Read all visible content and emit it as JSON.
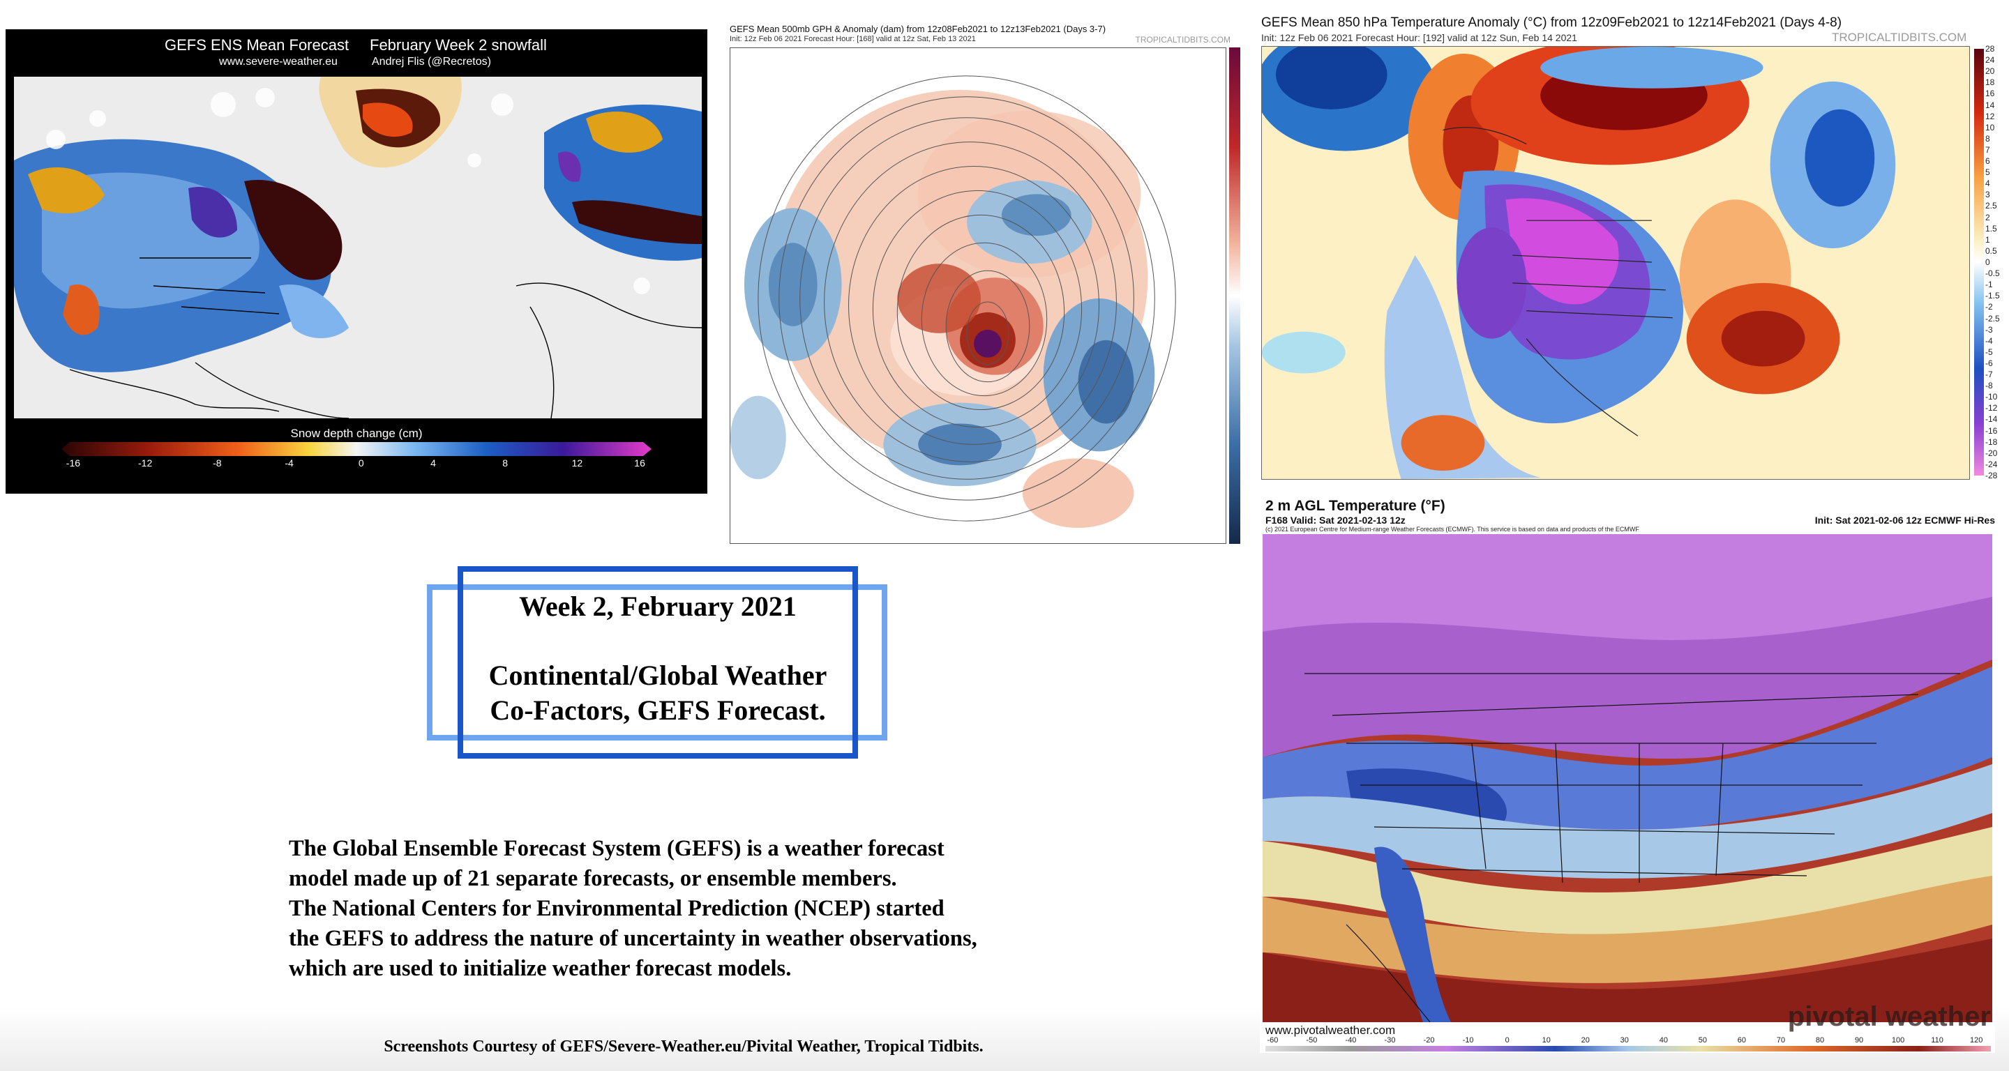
{
  "snow_panel": {
    "title_left": "GEFS ENS Mean Forecast",
    "title_right": "February Week 2 snowfall",
    "site": "www.severe-weather.eu",
    "author": "Andrej Flis (@Recretos)",
    "colorbar_title": "Snow depth change (cm)",
    "ticks": [
      "-16",
      "-12",
      "-8",
      "-4",
      "0",
      "4",
      "8",
      "12",
      "16"
    ]
  },
  "gph_panel": {
    "title": "GEFS Mean 500mb GPH & Anomaly (dam) from 12z08Feb2021 to 12z13Feb2021 (Days 3-7)",
    "init": "Init: 12z Feb 06 2021   Forecast Hour: [168]   valid at 12z Sat, Feb 13 2021",
    "brand": "TROPICALTIDBITS.COM"
  },
  "t850_panel": {
    "title": "GEFS Mean 850 hPa Temperature Anomaly (°C) from 12z09Feb2021 to 12z14Feb2021 (Days 4-8)",
    "init": "Init: 12z Feb 06 2021   Forecast Hour: [192]   valid at 12z Sun, Feb 14 2021",
    "brand": "TROPICALTIDBITS.COM",
    "scale": [
      "28",
      "24",
      "20",
      "18",
      "16",
      "14",
      "12",
      "10",
      "8",
      "7",
      "6",
      "5",
      "4",
      "3",
      "2.5",
      "2",
      "1.5",
      "1",
      "0.5",
      "0",
      "-0.5",
      "-1",
      "-1.5",
      "-2",
      "-2.5",
      "-3",
      "-4",
      "-5",
      "-6",
      "-7",
      "-8",
      "-10",
      "-12",
      "-14",
      "-16",
      "-18",
      "-20",
      "-24",
      "-28"
    ]
  },
  "t2m_panel": {
    "title": "2 m AGL Temperature (°F)",
    "valid": "F168 Valid: Sat 2021-02-13 12z",
    "init": "Init: Sat 2021-02-06 12z ECMWF Hi-Res",
    "copyright": "(c) 2021 European Centre for Medium-range Weather Forecasts (ECMWF). This service is based on data and products of the ECMWF",
    "url": "www.pivotalweather.com",
    "logo": "pivotal weather",
    "ticks": [
      "-60",
      "-50",
      "-40",
      "-30",
      "-20",
      "-10",
      "0",
      "10",
      "20",
      "30",
      "40",
      "50",
      "60",
      "70",
      "80",
      "90",
      "100",
      "110",
      "120"
    ]
  },
  "heading": {
    "line1": "Week 2, February 2021",
    "line2": "Continental/Global Weather",
    "line3": "Co-Factors, GEFS Forecast."
  },
  "paragraph": [
    "The Global Ensemble Forecast System (GEFS) is a weather forecast",
    "model made up of 21 separate forecasts, or ensemble members.",
    "The National Centers for Environmental Prediction (NCEP) started",
    "the GEFS to address the nature of uncertainty in weather observations,",
    "which are used to initialize weather forecast models."
  ],
  "credit": "Screenshots Courtesy of GEFS/Severe-Weather.eu/Pivital Weather, Tropical Tidbits."
}
